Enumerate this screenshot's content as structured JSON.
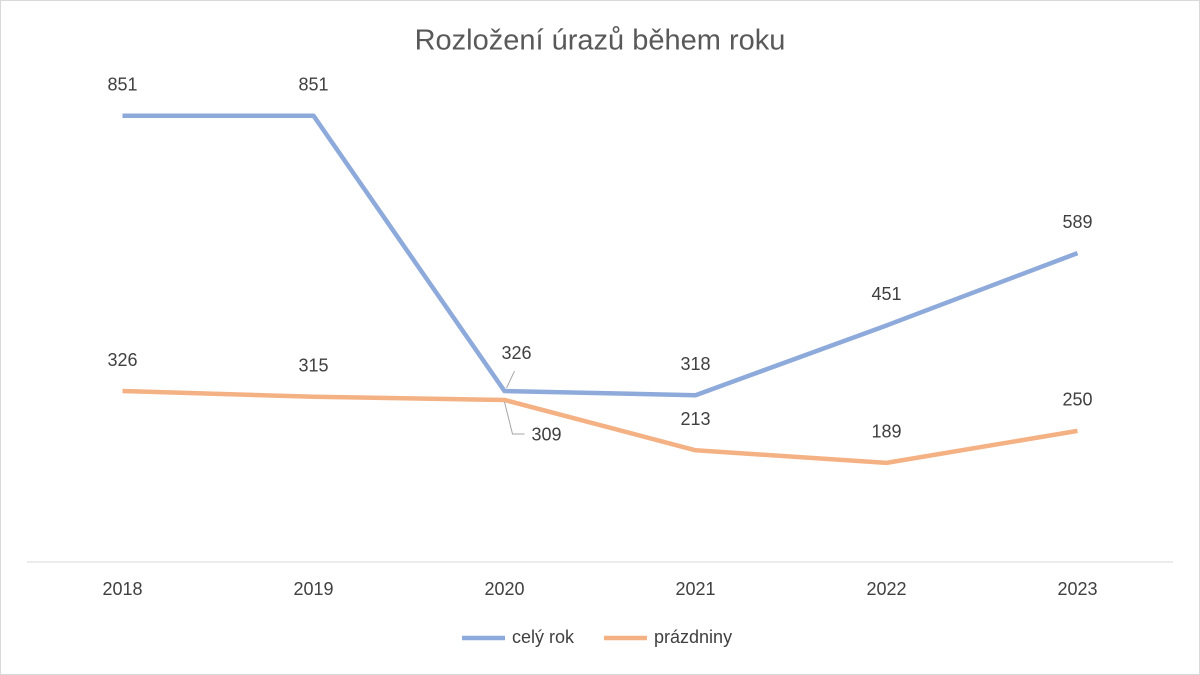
{
  "chart_data": {
    "type": "line",
    "title": "Rozložení úrazů během roku",
    "categories": [
      "2018",
      "2019",
      "2020",
      "2021",
      "2022",
      "2023"
    ],
    "series": [
      {
        "name": "celý rok",
        "color": "#8eaadb",
        "values": [
          851,
          851,
          326,
          318,
          451,
          589
        ]
      },
      {
        "name": "prázdniny",
        "color": "#f4b183",
        "values": [
          326,
          315,
          309,
          213,
          189,
          250
        ]
      }
    ],
    "ylim": [
      0,
      900
    ],
    "grid": false
  }
}
